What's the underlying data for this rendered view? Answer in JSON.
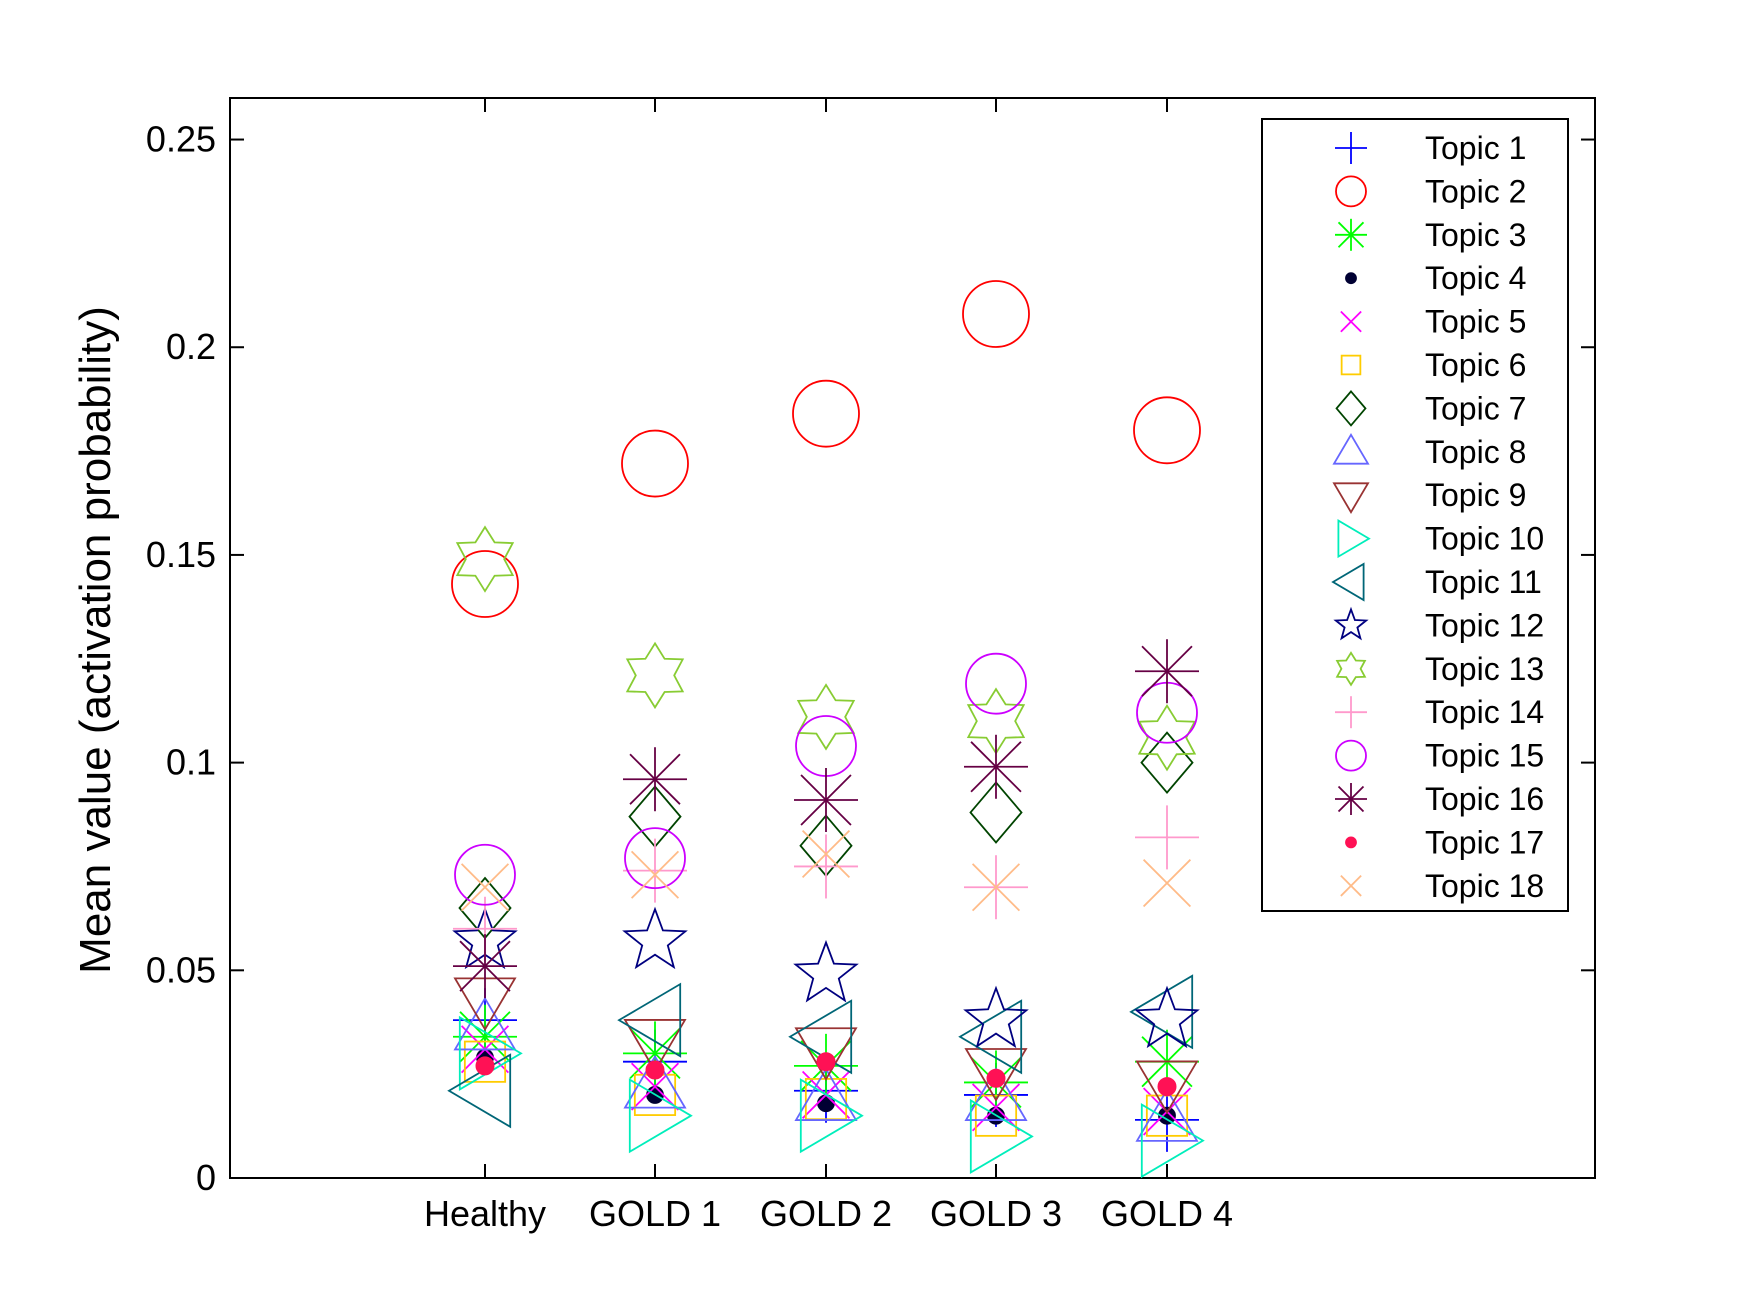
{
  "chart_data": {
    "type": "scatter",
    "categories": [
      "Healthy",
      "GOLD 1",
      "GOLD 2",
      "GOLD 3",
      "GOLD 4"
    ],
    "ylabel": "Mean value (activation probability)",
    "ylim": [
      0,
      0.26
    ],
    "yticks": [
      0,
      0.05,
      0.1,
      0.15,
      0.2,
      0.25
    ],
    "ytick_labels": [
      "0",
      "0.05",
      "0.1",
      "0.15",
      "0.2",
      "0.25"
    ],
    "grid": false,
    "legend_position": "top-right",
    "series": [
      {
        "name": "Topic 1",
        "marker": "plus",
        "color": "#0000ff",
        "values": [
          0.038,
          0.028,
          0.021,
          0.02,
          0.014
        ]
      },
      {
        "name": "Topic 2",
        "marker": "circle",
        "color": "#ff0000",
        "values": [
          0.143,
          0.172,
          0.184,
          0.208,
          0.18
        ]
      },
      {
        "name": "Topic 3",
        "marker": "asterisk",
        "color": "#00ff00",
        "values": [
          0.034,
          0.03,
          0.027,
          0.023,
          0.028
        ]
      },
      {
        "name": "Topic 4",
        "marker": "dot",
        "color": "#000033",
        "values": [
          0.029,
          0.02,
          0.018,
          0.015,
          0.015
        ]
      },
      {
        "name": "Topic 5",
        "marker": "x",
        "color": "#ff00ff",
        "values": [
          0.031,
          0.022,
          0.02,
          0.017,
          0.016
        ]
      },
      {
        "name": "Topic 6",
        "marker": "square",
        "color": "#ffcc00",
        "values": [
          0.028,
          0.02,
          0.019,
          0.015,
          0.015
        ]
      },
      {
        "name": "Topic 7",
        "marker": "diamond",
        "color": "#004400",
        "values": [
          0.065,
          0.087,
          0.08,
          0.088,
          0.1
        ]
      },
      {
        "name": "Topic 8",
        "marker": "triangle-up",
        "color": "#6666ff",
        "values": [
          0.036,
          0.022,
          0.019,
          0.019,
          0.014
        ]
      },
      {
        "name": "Topic 9",
        "marker": "triangle-down",
        "color": "#993333",
        "values": [
          0.043,
          0.033,
          0.031,
          0.026,
          0.023
        ]
      },
      {
        "name": "Topic 10",
        "marker": "triangle-right",
        "color": "#00eebb",
        "values": [
          0.03,
          0.015,
          0.015,
          0.01,
          0.009
        ]
      },
      {
        "name": "Topic 11",
        "marker": "triangle-left",
        "color": "#006677",
        "values": [
          0.021,
          0.038,
          0.034,
          0.034,
          0.04
        ]
      },
      {
        "name": "Topic 12",
        "marker": "pentagram",
        "color": "#000080",
        "values": [
          0.057,
          0.057,
          0.049,
          0.038,
          0.038
        ]
      },
      {
        "name": "Topic 13",
        "marker": "hexagram",
        "color": "#88cc33",
        "values": [
          0.149,
          0.121,
          0.111,
          0.11,
          0.106
        ]
      },
      {
        "name": "Topic 14",
        "marker": "plus",
        "color": "#ff99cc",
        "values": [
          0.06,
          0.074,
          0.075,
          0.07,
          0.082
        ]
      },
      {
        "name": "Topic 15",
        "marker": "circle",
        "color": "#cc00ff",
        "values": [
          0.073,
          0.077,
          0.104,
          0.119,
          0.112
        ]
      },
      {
        "name": "Topic 16",
        "marker": "asterisk",
        "color": "#660044",
        "values": [
          0.051,
          0.096,
          0.091,
          0.099,
          0.122
        ]
      },
      {
        "name": "Topic 17",
        "marker": "dot",
        "color": "#ff1155",
        "values": [
          0.027,
          0.026,
          0.028,
          0.024,
          0.022
        ]
      },
      {
        "name": "Topic 18",
        "marker": "x",
        "color": "#ffbb88",
        "values": [
          0.07,
          0.073,
          0.078,
          0.07,
          0.071
        ]
      }
    ]
  }
}
